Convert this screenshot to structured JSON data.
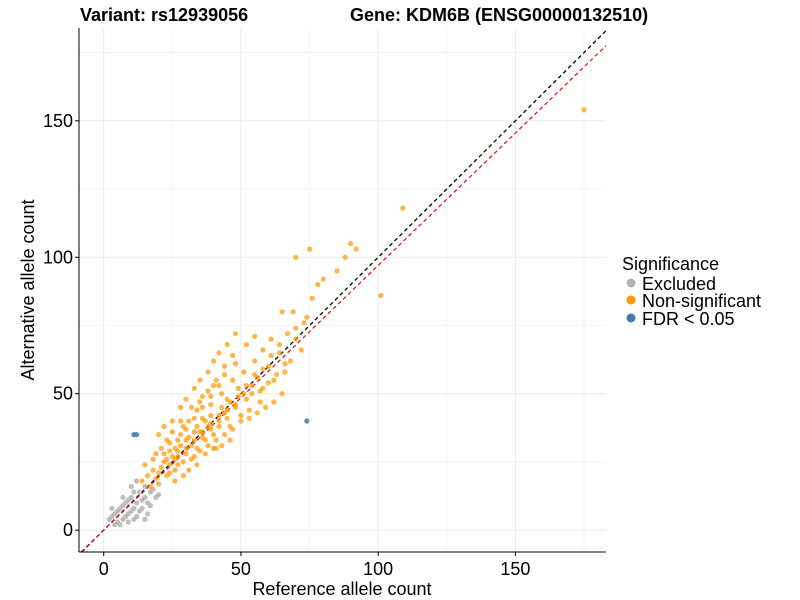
{
  "chart_data": {
    "type": "scatter",
    "title_left": "Variant: rs12939056",
    "title_right": "Gene: KDM6B (ENSG00000132510)",
    "xlabel": "Reference allele count",
    "ylabel": "Alternative allele count",
    "xlim": [
      -9,
      183
    ],
    "ylim": [
      -8,
      184
    ],
    "xticks": [
      0,
      50,
      100,
      150
    ],
    "yticks": [
      0,
      50,
      100,
      150
    ],
    "reference_lines": [
      {
        "name": "identity",
        "color": "#000000",
        "style": "dashed",
        "slope": 1.0,
        "intercept": 0
      },
      {
        "name": "fitted",
        "color": "#e41a1c",
        "style": "dashed",
        "slope": 0.97,
        "intercept": 0
      }
    ],
    "legend": {
      "title": "Significance",
      "position": "right",
      "entries": [
        {
          "label": "Excluded",
          "color": "#b3b3b3"
        },
        {
          "label": "Non-significant",
          "color": "#ff9900"
        },
        {
          "label": "FDR < 0.05",
          "color": "#4477aa"
        }
      ]
    },
    "series": [
      {
        "name": "Excluded",
        "color": "#b3b3b3",
        "points": [
          [
            3,
            5
          ],
          [
            4,
            6
          ],
          [
            5,
            3
          ],
          [
            6,
            8
          ],
          [
            7,
            4
          ],
          [
            8,
            10
          ],
          [
            9,
            6
          ],
          [
            10,
            12
          ],
          [
            11,
            8
          ],
          [
            12,
            5
          ],
          [
            5,
            7
          ],
          [
            7,
            9
          ],
          [
            9,
            3
          ],
          [
            10,
            7
          ],
          [
            12,
            10
          ],
          [
            13,
            14
          ],
          [
            14,
            8
          ],
          [
            15,
            12
          ],
          [
            16,
            6
          ],
          [
            17,
            14
          ],
          [
            6,
            2
          ],
          [
            8,
            5
          ],
          [
            11,
            4
          ],
          [
            13,
            7
          ],
          [
            14,
            11
          ],
          [
            15,
            16
          ],
          [
            16,
            10
          ],
          [
            17,
            9
          ],
          [
            4,
            2
          ],
          [
            9,
            11
          ],
          [
            11,
            14
          ],
          [
            18,
            15
          ],
          [
            19,
            12
          ],
          [
            15,
            4
          ],
          [
            20,
            13
          ],
          [
            12,
            18
          ],
          [
            10,
            16
          ],
          [
            7,
            12
          ],
          [
            3,
            8
          ],
          [
            2,
            4
          ]
        ]
      },
      {
        "name": "Non-significant",
        "color": "#ff9900",
        "points": [
          [
            14,
            18
          ],
          [
            16,
            20
          ],
          [
            18,
            22
          ],
          [
            15,
            24
          ],
          [
            20,
            17
          ],
          [
            22,
            25
          ],
          [
            19,
            28
          ],
          [
            24,
            21
          ],
          [
            21,
            30
          ],
          [
            25,
            27
          ],
          [
            23,
            33
          ],
          [
            27,
            24
          ],
          [
            26,
            30
          ],
          [
            28,
            35
          ],
          [
            30,
            28
          ],
          [
            29,
            38
          ],
          [
            32,
            31
          ],
          [
            31,
            40
          ],
          [
            33,
            27
          ],
          [
            35,
            36
          ],
          [
            34,
            44
          ],
          [
            37,
            33
          ],
          [
            36,
            41
          ],
          [
            38,
            38
          ],
          [
            40,
            35
          ],
          [
            39,
            46
          ],
          [
            42,
            40
          ],
          [
            41,
            30
          ],
          [
            44,
            43
          ],
          [
            43,
            50
          ],
          [
            46,
            38
          ],
          [
            45,
            48
          ],
          [
            48,
            45
          ],
          [
            47,
            55
          ],
          [
            50,
            42
          ],
          [
            49,
            52
          ],
          [
            52,
            48
          ],
          [
            51,
            58
          ],
          [
            54,
            50
          ],
          [
            53,
            44
          ],
          [
            56,
            56
          ],
          [
            55,
            62
          ],
          [
            58,
            52
          ],
          [
            57,
            47
          ],
          [
            60,
            60
          ],
          [
            62,
            55
          ],
          [
            64,
            65
          ],
          [
            66,
            58
          ],
          [
            61,
            70
          ],
          [
            68,
            62
          ],
          [
            70,
            74
          ],
          [
            72,
            66
          ],
          [
            65,
            80
          ],
          [
            74,
            78
          ],
          [
            76,
            85
          ],
          [
            78,
            90
          ],
          [
            80,
            92
          ],
          [
            70,
            100
          ],
          [
            75,
            103
          ],
          [
            90,
            105
          ],
          [
            101,
            86
          ],
          [
            109,
            118
          ],
          [
            175,
            154
          ],
          [
            20,
            35
          ],
          [
            25,
            40
          ],
          [
            28,
            45
          ],
          [
            30,
            48
          ],
          [
            33,
            52
          ],
          [
            35,
            55
          ],
          [
            38,
            58
          ],
          [
            40,
            62
          ],
          [
            42,
            65
          ],
          [
            45,
            68
          ],
          [
            48,
            72
          ],
          [
            23,
            20
          ],
          [
            26,
            22
          ],
          [
            29,
            25
          ],
          [
            32,
            26
          ],
          [
            35,
            29
          ],
          [
            38,
            31
          ],
          [
            41,
            33
          ],
          [
            44,
            35
          ],
          [
            47,
            37
          ],
          [
            50,
            40
          ],
          [
            53,
            41
          ],
          [
            56,
            43
          ],
          [
            59,
            45
          ],
          [
            62,
            47
          ],
          [
            65,
            50
          ],
          [
            18,
            26
          ],
          [
            22,
            28
          ],
          [
            24,
            32
          ],
          [
            27,
            29
          ],
          [
            30,
            33
          ],
          [
            33,
            36
          ],
          [
            36,
            34
          ],
          [
            39,
            37
          ],
          [
            42,
            42
          ],
          [
            45,
            44
          ],
          [
            48,
            46
          ],
          [
            51,
            50
          ],
          [
            54,
            53
          ],
          [
            57,
            51
          ],
          [
            60,
            54
          ],
          [
            63,
            57
          ],
          [
            66,
            61
          ],
          [
            17,
            16
          ],
          [
            19,
            19
          ],
          [
            21,
            23
          ],
          [
            23,
            26
          ],
          [
            26,
            26
          ],
          [
            28,
            31
          ],
          [
            31,
            34
          ],
          [
            34,
            38
          ],
          [
            37,
            40
          ],
          [
            39,
            42
          ],
          [
            43,
            45
          ],
          [
            46,
            47
          ],
          [
            49,
            49
          ],
          [
            52,
            53
          ],
          [
            55,
            57
          ],
          [
            58,
            59
          ],
          [
            28,
            40
          ],
          [
            32,
            45
          ],
          [
            36,
            49
          ],
          [
            40,
            53
          ],
          [
            44,
            57
          ],
          [
            48,
            61
          ],
          [
            34,
            30
          ],
          [
            37,
            28
          ],
          [
            40,
            30
          ],
          [
            43,
            31
          ],
          [
            46,
            33
          ],
          [
            20,
            21
          ],
          [
            24,
            24
          ],
          [
            27,
            27
          ],
          [
            30,
            30
          ],
          [
            33,
            33
          ],
          [
            36,
            36
          ],
          [
            39,
            39
          ],
          [
            42,
            38
          ],
          [
            45,
            41
          ],
          [
            31,
            22
          ],
          [
            34,
            24
          ],
          [
            26,
            18
          ],
          [
            29,
            20
          ],
          [
            24,
            29
          ],
          [
            27,
            33
          ],
          [
            30,
            37
          ],
          [
            33,
            41
          ],
          [
            36,
            45
          ],
          [
            39,
            49
          ],
          [
            42,
            53
          ],
          [
            25,
            36
          ],
          [
            22,
            38
          ],
          [
            35,
            47
          ],
          [
            38,
            51
          ],
          [
            41,
            55
          ],
          [
            44,
            60
          ],
          [
            47,
            64
          ],
          [
            52,
            68
          ],
          [
            55,
            71
          ],
          [
            58,
            66
          ],
          [
            61,
            64
          ],
          [
            64,
            68
          ],
          [
            67,
            72
          ],
          [
            70,
            70
          ],
          [
            73,
            76
          ],
          [
            69,
            80
          ],
          [
            85,
            95
          ],
          [
            88,
            100
          ],
          [
            92,
            103
          ]
        ]
      },
      {
        "name": "FDR < 0.05",
        "color": "#4477aa",
        "points": [
          [
            11,
            35
          ],
          [
            12,
            35
          ],
          [
            74,
            40
          ]
        ]
      }
    ]
  }
}
